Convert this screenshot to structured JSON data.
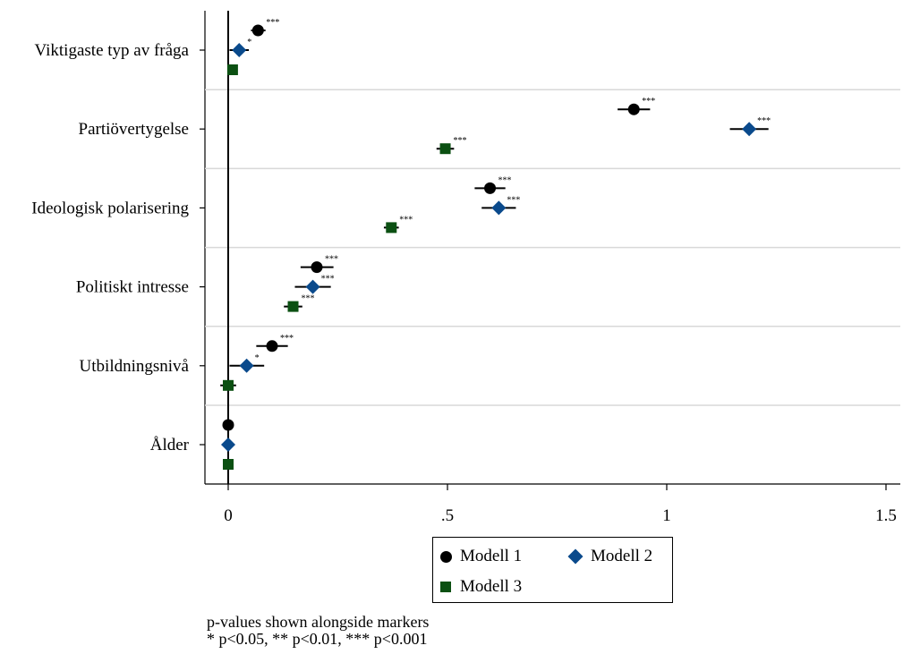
{
  "chart_data": {
    "type": "scatter",
    "subtype": "coefficient-plot",
    "categories": [
      "Viktigaste typ av fråga",
      "Partiövertygelse",
      "Ideologisk polarisering",
      "Politiskt intresse",
      "Utbildningsnivå",
      "Ålder"
    ],
    "xlim": [
      -0.055,
      1.535
    ],
    "xticks": [
      0,
      0.5,
      1,
      1.5
    ],
    "xtick_labels": [
      "0",
      ".5",
      "1",
      "1.5"
    ],
    "reference_line": 0,
    "grid": "horizontal separators between categories",
    "series": [
      {
        "name": "Modell 1",
        "marker": "circle",
        "color": "#000000",
        "points": [
          {
            "category": "Viktigaste typ av fråga",
            "estimate": 0.068,
            "ci": [
              0.052,
              0.085
            ],
            "stars": "***"
          },
          {
            "category": "Partiövertygelse",
            "estimate": 0.925,
            "ci": [
              0.888,
              0.962
            ],
            "stars": "***"
          },
          {
            "category": "Ideologisk polarisering",
            "estimate": 0.597,
            "ci": [
              0.562,
              0.632
            ],
            "stars": "***"
          },
          {
            "category": "Politiskt intresse",
            "estimate": 0.202,
            "ci": [
              0.165,
              0.24
            ],
            "stars": "***"
          },
          {
            "category": "Utbildningsnivå",
            "estimate": 0.1,
            "ci": [
              0.064,
              0.136
            ],
            "stars": "***"
          },
          {
            "category": "Ålder",
            "estimate": 0.0,
            "ci": [
              -0.002,
              0.002
            ],
            "stars": ""
          }
        ]
      },
      {
        "name": "Modell 2",
        "marker": "diamond",
        "color": "#0a4a8c",
        "points": [
          {
            "category": "Viktigaste typ av fråga",
            "estimate": 0.025,
            "ci": [
              0.003,
              0.047
            ],
            "stars": "*"
          },
          {
            "category": "Partiövertygelse",
            "estimate": 1.188,
            "ci": [
              1.144,
              1.232
            ],
            "stars": "***"
          },
          {
            "category": "Ideologisk polarisering",
            "estimate": 0.617,
            "ci": [
              0.578,
              0.656
            ],
            "stars": "***"
          },
          {
            "category": "Politiskt intresse",
            "estimate": 0.193,
            "ci": [
              0.152,
              0.234
            ],
            "stars": "***"
          },
          {
            "category": "Utbildningsnivå",
            "estimate": 0.042,
            "ci": [
              0.003,
              0.082
            ],
            "stars": "*"
          },
          {
            "category": "Ålder",
            "estimate": 0.0,
            "ci": [
              -0.002,
              0.002
            ],
            "stars": ""
          }
        ]
      },
      {
        "name": "Modell 3",
        "marker": "square",
        "color": "#0b5012",
        "points": [
          {
            "category": "Viktigaste typ av fråga",
            "estimate": 0.01,
            "ci": [
              0.003,
              0.017
            ],
            "stars": ""
          },
          {
            "category": "Partiövertygelse",
            "estimate": 0.495,
            "ci": [
              0.475,
              0.515
            ],
            "stars": "***"
          },
          {
            "category": "Ideologisk polarisering",
            "estimate": 0.372,
            "ci": [
              0.355,
              0.389
            ],
            "stars": "***"
          },
          {
            "category": "Politiskt intresse",
            "estimate": 0.148,
            "ci": [
              0.127,
              0.169
            ],
            "stars": "***"
          },
          {
            "category": "Utbildningsnivå",
            "estimate": 0.0,
            "ci": [
              -0.018,
              0.018
            ],
            "stars": ""
          },
          {
            "category": "Ålder",
            "estimate": 0.0,
            "ci": [
              -0.002,
              0.002
            ],
            "stars": ""
          }
        ]
      }
    ],
    "legend": {
      "position": "bottom",
      "entries": [
        "Modell 1",
        "Modell 2",
        "Modell 3"
      ]
    },
    "note": [
      "p-values shown alongside markers",
      "* p<0.05, ** p<0.01, *** p<0.001"
    ]
  }
}
